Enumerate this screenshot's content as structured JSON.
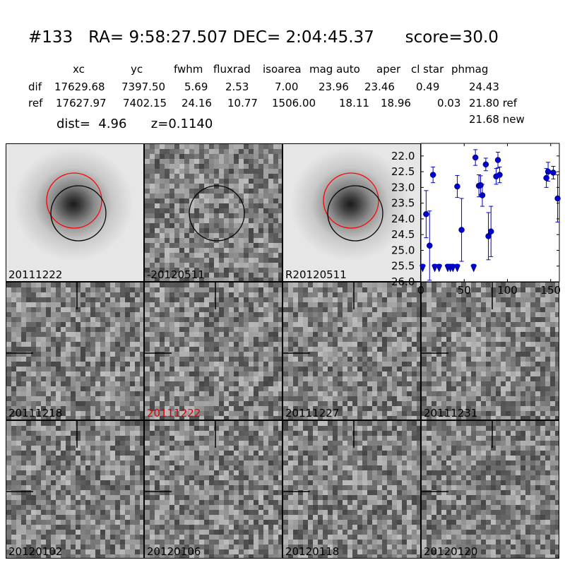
{
  "header": {
    "title": "#133   RA= 9:58:27.507 DEC= 2:04:45.37      score=30.0",
    "columns": [
      "xc",
      "yc",
      "fwhm",
      "fluxrad",
      "isoarea",
      "mag auto",
      "aper",
      "cl star",
      "phmag"
    ],
    "rows": [
      {
        "label": "dif",
        "values": [
          "17629.68",
          "7397.50",
          "5.69",
          "2.53",
          "7.00",
          "23.96",
          "23.46",
          "0.49",
          "24.43"
        ]
      },
      {
        "label": "ref",
        "values": [
          "17627.97",
          "7402.15",
          "24.16",
          "10.77",
          "1506.00",
          "18.11",
          "18.96",
          "0.03",
          "21.80 ref"
        ]
      }
    ],
    "phmag_new": "21.68 new",
    "dist_line": "dist=  4.96      z=0.1140"
  },
  "panels": [
    {
      "label": "20111222",
      "kind": "galaxy",
      "label_color": "#000000",
      "circles": [
        "red",
        "black"
      ]
    },
    {
      "label": "-20120511",
      "kind": "diff",
      "label_color": "#000000",
      "circles": [
        "black"
      ]
    },
    {
      "label": "R20120511",
      "kind": "galaxy",
      "label_color": "#000000",
      "circles": [
        "red",
        "black"
      ]
    },
    {
      "label": "20111218",
      "kind": "noise",
      "label_color": "#000000"
    },
    {
      "label": "20111222",
      "kind": "noise",
      "label_color": "#e00000"
    },
    {
      "label": "20111227",
      "kind": "noise",
      "label_color": "#000000"
    },
    {
      "label": "20111231",
      "kind": "noise",
      "label_color": "#000000"
    },
    {
      "label": "20120102",
      "kind": "noise",
      "label_color": "#000000"
    },
    {
      "label": "20120106",
      "kind": "noise",
      "label_color": "#000000"
    },
    {
      "label": "20120118",
      "kind": "noise",
      "label_color": "#000000"
    },
    {
      "label": "20120120",
      "kind": "noise",
      "label_color": "#000000"
    }
  ],
  "chart_data": {
    "type": "scatter",
    "title": "",
    "xlabel": "",
    "ylabel": "",
    "xlim": [
      0,
      160
    ],
    "ylim": [
      26.0,
      21.6
    ],
    "y_inverted": true,
    "xticks": [
      0,
      50,
      100,
      150
    ],
    "yticks": [
      22.0,
      22.5,
      23.0,
      23.5,
      24.0,
      24.5,
      25.0,
      25.5,
      26.0
    ],
    "ytick_labels": [
      "22.0",
      "22.5",
      "23.0",
      "23.5",
      "24.0",
      "24.5",
      "25.0",
      "25.5",
      "26.0"
    ],
    "color": "#0000cc",
    "detections": [
      {
        "x": 6,
        "y": 23.85,
        "err": 0.75
      },
      {
        "x": 10,
        "y": 24.85,
        "err": 1.1
      },
      {
        "x": 14,
        "y": 22.6,
        "err": 0.25
      },
      {
        "x": 42,
        "y": 22.97,
        "err": 0.35
      },
      {
        "x": 47,
        "y": 24.35,
        "err": 1.0
      },
      {
        "x": 63,
        "y": 22.05,
        "err": 0.25
      },
      {
        "x": 67,
        "y": 22.95,
        "err": 0.35
      },
      {
        "x": 69,
        "y": 22.93,
        "err": 0.3
      },
      {
        "x": 71,
        "y": 23.25,
        "err": 0.35
      },
      {
        "x": 75,
        "y": 22.27,
        "err": 0.2
      },
      {
        "x": 78,
        "y": 24.55,
        "err": 0.75
      },
      {
        "x": 81,
        "y": 24.4,
        "err": 0.8
      },
      {
        "x": 87,
        "y": 22.65,
        "err": 0.25
      },
      {
        "x": 89,
        "y": 22.13,
        "err": 0.25
      },
      {
        "x": 91,
        "y": 22.6,
        "err": 0.25
      },
      {
        "x": 145,
        "y": 22.7,
        "err": 0.3
      },
      {
        "x": 147,
        "y": 22.5,
        "err": 0.3
      },
      {
        "x": 153,
        "y": 22.53,
        "err": 0.2
      },
      {
        "x": 158,
        "y": 23.35,
        "err": 0.75
      }
    ],
    "upper_limits": [
      {
        "x": 2,
        "y": 25.55
      },
      {
        "x": 16,
        "y": 25.55
      },
      {
        "x": 21,
        "y": 25.55
      },
      {
        "x": 31,
        "y": 25.55
      },
      {
        "x": 34,
        "y": 25.55
      },
      {
        "x": 37,
        "y": 25.55
      },
      {
        "x": 42,
        "y": 25.55
      },
      {
        "x": 61,
        "y": 25.55
      }
    ]
  }
}
